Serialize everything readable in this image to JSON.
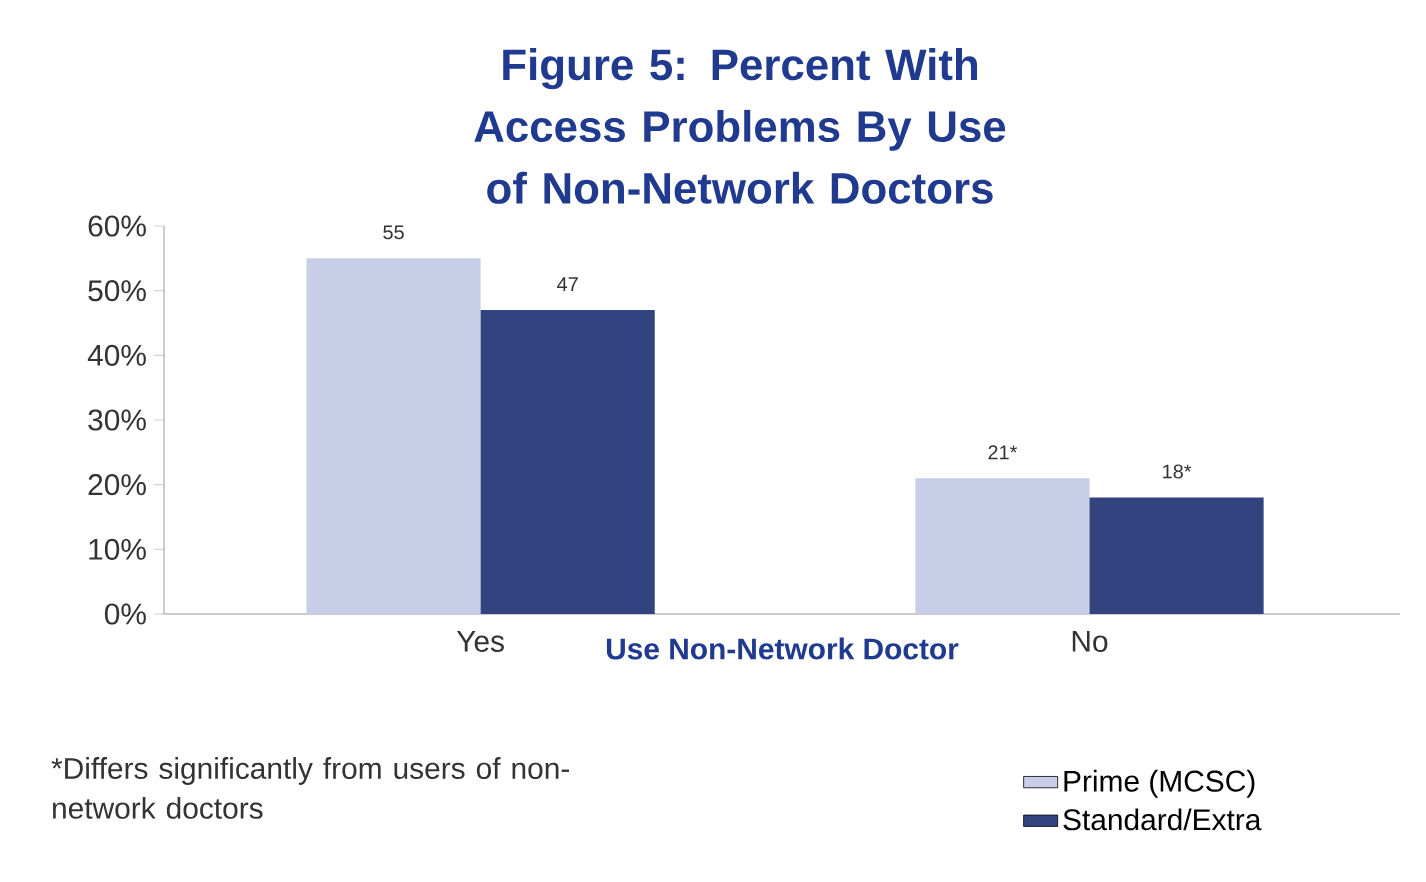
{
  "chart_data": {
    "type": "bar",
    "title": "Figure 5:  Percent With Access Problems By Use of Non-Network Doctors",
    "xlabel": "Use Non-Network Doctor",
    "categories": [
      "Yes",
      "No"
    ],
    "series": [
      {
        "name": "Prime (MCSC)",
        "color": "#c8cde8",
        "values": [
          55,
          21
        ],
        "value_labels": [
          "55",
          "21*"
        ]
      },
      {
        "name": "Standard/Extra",
        "color": "#33437f",
        "values": [
          47,
          18
        ],
        "value_labels": [
          "47",
          "18*"
        ]
      }
    ],
    "ylim": [
      0,
      60
    ],
    "yticks": [
      {
        "value": 0,
        "label": "0%"
      },
      {
        "value": 10,
        "label": "10%"
      },
      {
        "value": 20,
        "label": "20%"
      },
      {
        "value": 30,
        "label": "30%"
      },
      {
        "value": 40,
        "label": "40%"
      },
      {
        "value": 50,
        "label": "50%"
      },
      {
        "value": 60,
        "label": "60%"
      }
    ],
    "grid": false,
    "legend": "bottom right",
    "annotations": [
      "*Differs significantly from users of non-network doctors"
    ]
  }
}
